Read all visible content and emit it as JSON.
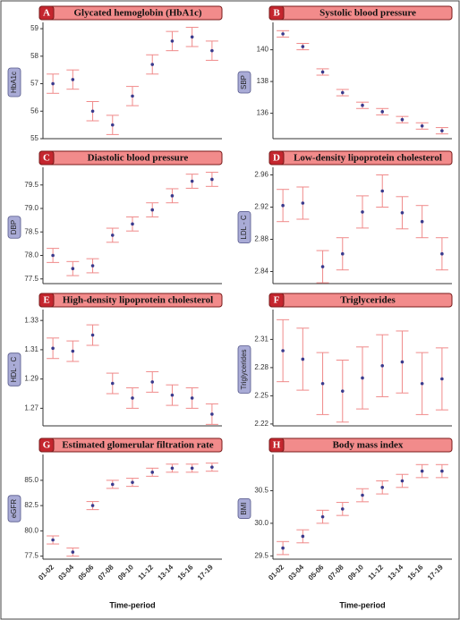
{
  "chart_data": [
    {
      "type": "errorbar",
      "panel": "A",
      "title": "Glycated hemoglobin (HbA1c)",
      "ylabel": "HbA1c",
      "categories": [
        null,
        null,
        null,
        null,
        null,
        null,
        null,
        null,
        null
      ],
      "values": [
        57.0,
        57.15,
        56.0,
        55.5,
        56.55,
        57.7,
        58.55,
        58.7,
        58.2
      ],
      "errors": [
        0.35,
        0.35,
        0.35,
        0.35,
        0.35,
        0.35,
        0.35,
        0.35,
        0.35
      ],
      "ylim": [
        55,
        59.1
      ],
      "yticks": [
        55,
        56,
        57,
        58,
        59
      ],
      "point_color": "#3a3a8c",
      "error_color": "#f08a8a"
    },
    {
      "type": "errorbar",
      "panel": "B",
      "title": "Systolic blood pressure",
      "ylabel": "SBP",
      "categories": [
        null,
        null,
        null,
        null,
        null,
        null,
        null,
        null,
        null
      ],
      "values": [
        141.0,
        140.2,
        138.6,
        137.3,
        136.5,
        136.1,
        135.6,
        135.2,
        134.9
      ],
      "errors": [
        0.2,
        0.2,
        0.2,
        0.2,
        0.2,
        0.2,
        0.2,
        0.2,
        0.2
      ],
      "ylim": [
        134.4,
        141.5
      ],
      "yticks": [
        136,
        138,
        140
      ],
      "point_color": "#3a3a8c",
      "error_color": "#f08a8a"
    },
    {
      "type": "errorbar",
      "panel": "C",
      "title": "Diastolic blood pressure",
      "ylabel": "DBP",
      "categories": [
        null,
        null,
        null,
        null,
        null,
        null,
        null,
        null,
        null
      ],
      "values": [
        78.0,
        77.72,
        77.78,
        78.43,
        78.67,
        78.97,
        79.27,
        79.58,
        79.62
      ],
      "errors": [
        0.15,
        0.15,
        0.15,
        0.15,
        0.15,
        0.15,
        0.15,
        0.15,
        0.15
      ],
      "ylim": [
        77.4,
        79.8
      ],
      "yticks": [
        77.5,
        {
          "value": 78,
          "label": "78.0"
        },
        78.5,
        {
          "value": 79,
          "label": "79.0"
        },
        79.5
      ],
      "point_color": "#3a3a8c",
      "error_color": "#f08a8a"
    },
    {
      "type": "errorbar",
      "panel": "D",
      "title": "Low-density lipoprotein cholesterol",
      "ylabel": "LDL - C",
      "categories": [
        null,
        null,
        null,
        null,
        null,
        null,
        null,
        null,
        null
      ],
      "values": [
        2.922,
        2.925,
        2.846,
        2.862,
        2.914,
        2.94,
        2.913,
        2.902,
        2.862
      ],
      "errors": [
        0.02,
        0.02,
        0.02,
        0.02,
        0.02,
        0.02,
        0.02,
        0.02,
        0.02
      ],
      "ylim": [
        2.825,
        2.965
      ],
      "yticks": [
        2.84,
        2.88,
        2.92,
        2.96
      ],
      "point_color": "#3a3a8c",
      "error_color": "#f08a8a"
    },
    {
      "type": "errorbar",
      "panel": "E",
      "title": "High-density lipoprotein cholesterol",
      "ylabel": "HDL - C",
      "categories": [
        null,
        null,
        null,
        null,
        null,
        null,
        null,
        null,
        null
      ],
      "values": [
        1.311,
        1.309,
        1.32,
        1.287,
        1.277,
        1.288,
        1.279,
        1.277,
        1.266
      ],
      "errors": [
        0.007,
        0.007,
        0.007,
        0.007,
        0.007,
        0.007,
        0.007,
        0.007,
        0.007
      ],
      "ylim": [
        1.258,
        1.335
      ],
      "yticks": [
        1.27,
        1.29,
        1.31,
        1.33
      ],
      "point_color": "#3a3a8c",
      "error_color": "#f08a8a"
    },
    {
      "type": "errorbar",
      "panel": "F",
      "title": "Triglycerides",
      "ylabel": "Triglycerides",
      "categories": [
        null,
        null,
        null,
        null,
        null,
        null,
        null,
        null,
        null
      ],
      "values": [
        2.298,
        2.289,
        2.263,
        2.255,
        2.269,
        2.282,
        2.286,
        2.263,
        2.268
      ],
      "errors": [
        0.033,
        0.033,
        0.033,
        0.033,
        0.033,
        0.033,
        0.033,
        0.033,
        0.033
      ],
      "ylim": [
        2.218,
        2.338
      ],
      "yticks": [
        2.22,
        2.25,
        2.28,
        2.31
      ],
      "point_color": "#3a3a8c",
      "error_color": "#f08a8a"
    },
    {
      "type": "errorbar",
      "panel": "G",
      "title": "Estimated glomerular filtration rate",
      "ylabel": "eGFR",
      "xlabel": "Time-period",
      "categories": [
        "01-02",
        "03-04",
        "05-06",
        "07-08",
        "09-10",
        "11-12",
        "13-14",
        "15-16",
        "17-19"
      ],
      "values": [
        79.1,
        77.9,
        82.5,
        84.6,
        84.8,
        85.8,
        86.2,
        86.2,
        86.3
      ],
      "errors": [
        0.4,
        0.4,
        0.4,
        0.4,
        0.4,
        0.4,
        0.4,
        0.4,
        0.4
      ],
      "ylim": [
        77.2,
        87.2
      ],
      "yticks": [
        77.5,
        {
          "value": 80,
          "label": "80.0"
        },
        82.5,
        {
          "value": 85,
          "label": "85.0"
        }
      ],
      "point_color": "#3a3a8c",
      "error_color": "#f08a8a"
    },
    {
      "type": "errorbar",
      "panel": "H",
      "title": "Body mass index",
      "ylabel": "BMI",
      "xlabel": "Time-period",
      "categories": [
        "01-02",
        "03-04",
        "05-06",
        "07-08",
        "09-10",
        "11-12",
        "13-14",
        "15-16",
        "17-19"
      ],
      "values": [
        29.62,
        29.8,
        30.1,
        30.22,
        30.43,
        30.55,
        30.65,
        30.8,
        30.8
      ],
      "errors": [
        0.1,
        0.1,
        0.1,
        0.1,
        0.1,
        0.1,
        0.1,
        0.1,
        0.1
      ],
      "ylim": [
        29.45,
        31.0
      ],
      "yticks": [
        29.5,
        {
          "value": 30,
          "label": "30.0"
        },
        30.5
      ],
      "point_color": "#3a3a8c",
      "error_color": "#f08a8a"
    }
  ]
}
